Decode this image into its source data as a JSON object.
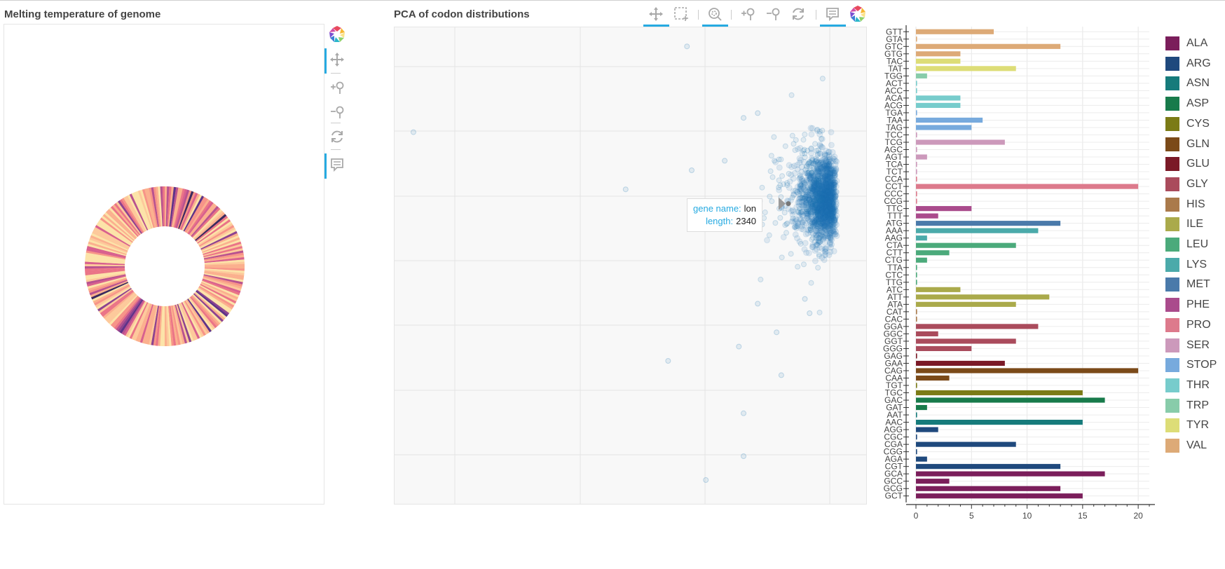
{
  "panels": {
    "melting": {
      "title": "Melting temperature of genome"
    },
    "pca": {
      "title": "PCA of codon distributions"
    }
  },
  "toolbar_left": [
    {
      "name": "bokeh-logo-icon",
      "active": false
    },
    {
      "name": "pan-icon",
      "active": true
    },
    {
      "name": "zoom-in-icon",
      "active": false
    },
    {
      "name": "zoom-out-icon",
      "active": false
    },
    {
      "name": "reset-icon",
      "active": false
    },
    {
      "name": "hover-icon",
      "active": true
    }
  ],
  "toolbar_top": [
    {
      "name": "pan-icon",
      "active": true
    },
    {
      "name": "box-select-icon",
      "active": false
    },
    {
      "name": "wheel-zoom-icon",
      "active": true
    },
    {
      "name": "zoom-in-icon",
      "active": false
    },
    {
      "name": "zoom-out-icon",
      "active": false
    },
    {
      "name": "reset-icon",
      "active": false
    },
    {
      "name": "hover-icon",
      "active": true
    },
    {
      "name": "bokeh-logo-icon",
      "active": false
    }
  ],
  "tooltip": {
    "gene_name_label": "gene name:",
    "gene_name_value": "lon",
    "length_label": "length:",
    "length_value": "2340"
  },
  "colors": {
    "ALA": "#7b1e5b",
    "ARG": "#1f497d",
    "ASN": "#167b7b",
    "ASP": "#187b4b",
    "CYS": "#7b7b16",
    "GLN": "#7b4a19",
    "GLU": "#7b1a27",
    "GLY": "#aa4b5c",
    "HIS": "#aa7a4b",
    "ILE": "#aaaa4b",
    "LEU": "#4baa7b",
    "LYS": "#4baaaa",
    "MET": "#4a7aaa",
    "PHE": "#aa4b8c",
    "PRO": "#dd7a8c",
    "SER": "#cc99bb",
    "STOP": "#77aadd",
    "THR": "#77cccc",
    "TRP": "#88ccaa",
    "TYR": "#dddd77",
    "VAL": "#ddaa77"
  },
  "chart_data": [
    {
      "type": "pie",
      "title": "Melting temperature of genome",
      "note": "annular wedge ring; each wedge colored by melting temperature (magma-like palette)"
    },
    {
      "type": "scatter",
      "title": "PCA of codon distributions",
      "xlabel": "",
      "ylabel": "",
      "grid": true,
      "cluster_center": [
        0.93,
        0.36
      ],
      "outliers": [
        [
          0.62,
          0.04
        ],
        [
          0.04,
          0.22
        ],
        [
          0.49,
          0.34
        ],
        [
          0.63,
          0.3
        ],
        [
          0.7,
          0.28
        ],
        [
          0.74,
          0.19
        ],
        [
          0.77,
          0.18
        ],
        [
          0.77,
          0.58
        ],
        [
          0.73,
          0.67
        ],
        [
          0.58,
          0.7
        ],
        [
          0.82,
          0.73
        ],
        [
          0.74,
          0.81
        ],
        [
          0.74,
          0.9
        ],
        [
          0.66,
          0.95
        ],
        [
          0.81,
          0.64
        ],
        [
          0.87,
          0.57
        ],
        [
          0.88,
          0.6
        ]
      ],
      "highlight_point": {
        "gene name": "lon",
        "length": 2340
      }
    },
    {
      "type": "bar",
      "orientation": "horizontal",
      "xlim": [
        0,
        21
      ],
      "xticks": [
        0,
        5,
        10,
        15,
        20
      ],
      "legend_position": "right",
      "categories": [
        "GTT",
        "GTA",
        "GTC",
        "GTG",
        "TAC",
        "TAT",
        "TGG",
        "ACT",
        "ACC",
        "ACA",
        "ACG",
        "TGA",
        "TAA",
        "TAG",
        "TCC",
        "TCG",
        "AGC",
        "AGT",
        "TCA",
        "TCT",
        "CCA",
        "CCT",
        "CCC",
        "CCG",
        "TTC",
        "TTT",
        "ATG",
        "AAA",
        "AAG",
        "CTA",
        "CTT",
        "CTG",
        "TTA",
        "CTC",
        "TTG",
        "ATC",
        "ATT",
        "ATA",
        "CAT",
        "CAC",
        "GGA",
        "GGC",
        "GGT",
        "GGG",
        "GAG",
        "GAA",
        "CAG",
        "CAA",
        "TGT",
        "TGC",
        "GAC",
        "GAT",
        "AAT",
        "AAC",
        "AGG",
        "CGC",
        "CGA",
        "CGG",
        "AGA",
        "CGT",
        "GCA",
        "GCC",
        "GCG",
        "GCT"
      ],
      "values": [
        7,
        0.1,
        13,
        4,
        4,
        9,
        1,
        0.1,
        0.1,
        4,
        4,
        0.1,
        6,
        5,
        0.1,
        8,
        0.1,
        1,
        0.1,
        0.1,
        0.1,
        20,
        0.1,
        0.1,
        5,
        2,
        13,
        11,
        1,
        9,
        3,
        1,
        0.1,
        0.1,
        0.1,
        4,
        12,
        9,
        0.1,
        0.1,
        11,
        2,
        9,
        5,
        0.1,
        8,
        20,
        3,
        0.1,
        15,
        17,
        1,
        0.1,
        15,
        2,
        0.1,
        9,
        0.1,
        1,
        13,
        17,
        3,
        13,
        15
      ],
      "amino_acid": [
        "VAL",
        "VAL",
        "VAL",
        "VAL",
        "TYR",
        "TYR",
        "TRP",
        "THR",
        "THR",
        "THR",
        "THR",
        "STOP",
        "STOP",
        "STOP",
        "SER",
        "SER",
        "SER",
        "SER",
        "SER",
        "SER",
        "PRO",
        "PRO",
        "PRO",
        "PRO",
        "PHE",
        "PHE",
        "MET",
        "LYS",
        "LYS",
        "LEU",
        "LEU",
        "LEU",
        "LEU",
        "LEU",
        "LEU",
        "ILE",
        "ILE",
        "ILE",
        "HIS",
        "HIS",
        "GLY",
        "GLY",
        "GLY",
        "GLY",
        "GLU",
        "GLU",
        "GLN",
        "GLN",
        "CYS",
        "CYS",
        "ASP",
        "ASP",
        "ASN",
        "ASN",
        "ARG",
        "ARG",
        "ARG",
        "ARG",
        "ARG",
        "ARG",
        "ALA",
        "ALA",
        "ALA",
        "ALA"
      ],
      "legend": [
        "ALA",
        "ARG",
        "ASN",
        "ASP",
        "CYS",
        "GLN",
        "GLU",
        "GLY",
        "HIS",
        "ILE",
        "LEU",
        "LYS",
        "MET",
        "PHE",
        "PRO",
        "SER",
        "STOP",
        "THR",
        "TRP",
        "TYR",
        "VAL"
      ]
    }
  ]
}
